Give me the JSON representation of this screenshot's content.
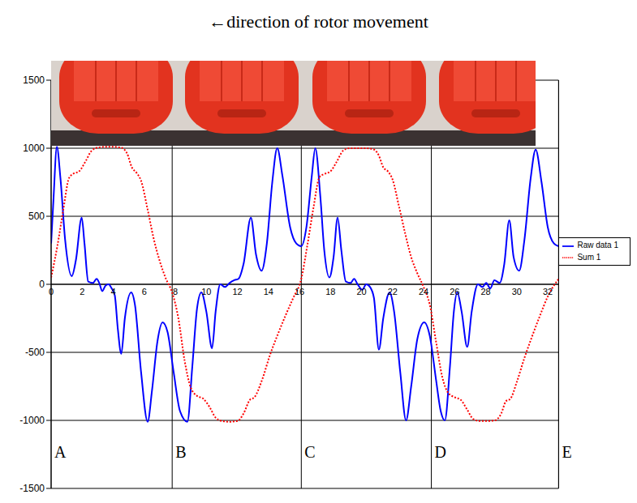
{
  "chart_data": {
    "type": "line",
    "title": "←direction of rotor movement",
    "xlim": [
      0,
      32.7
    ],
    "xticks": [
      0,
      2,
      4,
      6,
      8,
      10,
      12,
      14,
      16,
      18,
      20,
      22,
      24,
      26,
      28,
      30,
      32
    ],
    "ylim": [
      -1500,
      1500
    ],
    "yticks": [
      -1500,
      -1000,
      -500,
      0,
      500,
      1000,
      1500
    ],
    "grid": true,
    "legend": "right",
    "series": [
      {
        "name": "Raw data 1",
        "color": "#0000ff",
        "line_style": "solid",
        "x": [
          0,
          0.15,
          0.37,
          0.6,
          0.9,
          1.33,
          1.6,
          1.97,
          2.15,
          2.39,
          2.7,
          2.93,
          3.1,
          3.3,
          3.5,
          3.7,
          3.9,
          4.1,
          4.3,
          4.52,
          4.75,
          5.16,
          5.4,
          5.8,
          6.22,
          6.5,
          6.85,
          7.18,
          7.5,
          7.9,
          8.3,
          8.78,
          9.1,
          9.4,
          9.68,
          10.0,
          10.37,
          10.6,
          10.9,
          11.2,
          11.5,
          11.8,
          12.07,
          12.4,
          12.87,
          13.2,
          13.56,
          13.9,
          14.25,
          14.57,
          14.9,
          15.4,
          15.8,
          16.12,
          16.45,
          16.8,
          17.02,
          17.35,
          17.6,
          17.93,
          18.2,
          18.46,
          18.7,
          18.99,
          19.3,
          19.52,
          19.75,
          20.05,
          20.3,
          20.55,
          20.8,
          21.12,
          21.4,
          21.81,
          22.1,
          22.5,
          22.87,
          23.2,
          23.6,
          24.04,
          24.4,
          24.8,
          25.1,
          25.37,
          25.7,
          25.95,
          26.17,
          26.45,
          26.81,
          27.1,
          27.5,
          27.8,
          28.03,
          28.3,
          28.56,
          28.9,
          29.2,
          29.52,
          29.8,
          30.16,
          30.5,
          30.9,
          31.22,
          31.6,
          32.0,
          32.4,
          32.7
        ],
        "values": [
          300,
          620,
          1010,
          780,
          330,
          60,
          180,
          490,
          300,
          20,
          10,
          40,
          10,
          -50,
          -10,
          0,
          -30,
          -80,
          -330,
          -510,
          -250,
          -60,
          -150,
          -650,
          -1010,
          -780,
          -420,
          -280,
          -350,
          -650,
          -930,
          -1010,
          -600,
          -180,
          -60,
          -200,
          -470,
          -200,
          0,
          -20,
          10,
          30,
          40,
          150,
          490,
          220,
          100,
          300,
          750,
          1000,
          800,
          420,
          300,
          280,
          420,
          800,
          1000,
          640,
          250,
          50,
          200,
          490,
          250,
          20,
          10,
          40,
          0,
          -40,
          0,
          -20,
          -100,
          -480,
          -250,
          -60,
          -200,
          -650,
          -1000,
          -750,
          -400,
          -280,
          -380,
          -700,
          -930,
          -1000,
          -600,
          -200,
          -60,
          -200,
          -460,
          -200,
          0,
          -20,
          10,
          -30,
          30,
          10,
          150,
          470,
          200,
          100,
          330,
          780,
          990,
          750,
          420,
          300,
          280
        ]
      },
      {
        "name": "Sum 1",
        "color": "#ff0000",
        "line_style": "dotted",
        "x": [
          0,
          0.4,
          0.8,
          1.15,
          1.4,
          1.8,
          2.2,
          2.6,
          3.0,
          3.5,
          4.0,
          4.5,
          4.9,
          5.2,
          5.5,
          5.8,
          6.2,
          6.6,
          7.0,
          7.4,
          7.8,
          8.2,
          8.6,
          9.0,
          9.4,
          9.8,
          10.2,
          10.6,
          11.0,
          11.5,
          12.0,
          12.4,
          12.8,
          13.1,
          13.6,
          14.1,
          14.6,
          15.1,
          15.6,
          16.12,
          16.5,
          16.9,
          17.3,
          17.6,
          18.0,
          18.4,
          18.8,
          19.2,
          19.7,
          20.2,
          20.7,
          21.1,
          21.4,
          21.7,
          22.0,
          22.4,
          22.8,
          23.2,
          23.6,
          24.0,
          24.4,
          24.8,
          25.2,
          25.6,
          26.0,
          26.4,
          26.8,
          27.2,
          27.6,
          28.1,
          28.6,
          29.0,
          29.3,
          29.6,
          30.0,
          30.5,
          31.0,
          31.5,
          32.0,
          32.7
        ],
        "values": [
          50,
          280,
          560,
          780,
          810,
          830,
          900,
          980,
          1005,
          1010,
          1010,
          1005,
          960,
          860,
          820,
          760,
          560,
          340,
          170,
          40,
          -60,
          -250,
          -560,
          -760,
          -820,
          -840,
          -900,
          -980,
          -1005,
          -1010,
          -1005,
          -950,
          -850,
          -830,
          -700,
          -520,
          -370,
          -230,
          -100,
          40,
          280,
          560,
          790,
          810,
          830,
          900,
          980,
          1000,
          1000,
          1000,
          995,
          950,
          860,
          830,
          770,
          580,
          380,
          200,
          80,
          -20,
          -150,
          -420,
          -680,
          -800,
          -830,
          -850,
          -920,
          -990,
          -1005,
          -1005,
          -1000,
          -950,
          -860,
          -840,
          -720,
          -540,
          -380,
          -230,
          -90,
          40
        ]
      }
    ],
    "annotations": [
      {
        "x": 0,
        "label": "A"
      },
      {
        "x": 7.8,
        "label": "B"
      },
      {
        "x": 16.12,
        "label": "C"
      },
      {
        "x": 24.5,
        "label": "D"
      },
      {
        "x": 32.7,
        "label": "E"
      }
    ]
  }
}
